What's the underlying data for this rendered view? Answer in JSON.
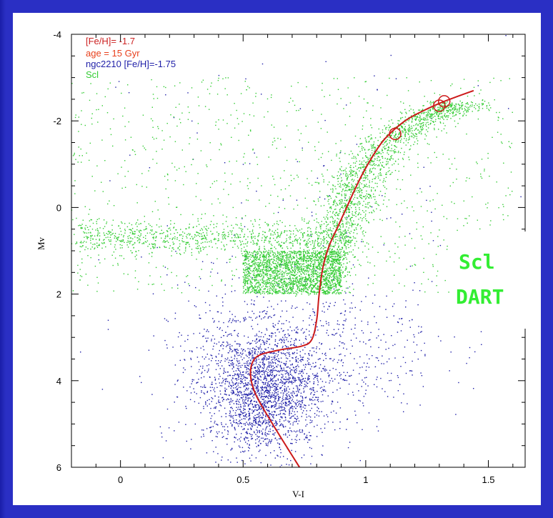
{
  "chart_data": {
    "type": "scatter",
    "xlabel": "V-I",
    "ylabel": "Mv",
    "xlim": [
      -0.2,
      1.65
    ],
    "ylim": [
      6,
      -4
    ],
    "y_inverted": true,
    "x_ticks": [
      0,
      0.5,
      1,
      1.5
    ],
    "x_tick_labels": [
      "0",
      "0.5",
      "1",
      "1.5"
    ],
    "y_ticks": [
      -4,
      -2,
      0,
      2,
      4,
      6
    ],
    "y_tick_labels": [
      "-4",
      "-2",
      "0",
      "2",
      "4",
      "6"
    ],
    "legend": [
      {
        "label": "[Fe/H]= -1.7",
        "color": "#cc2222"
      },
      {
        "label": "age = 15 Gyr",
        "color": "#e8401c"
      },
      {
        "label": "ngc2210 [Fe/H]=-1.75",
        "color": "#1f1fa8"
      },
      {
        "label": "Scl",
        "color": "#33cc33"
      }
    ],
    "legend_position": "top-left",
    "series": [
      {
        "name": "ngc2210 [Fe/H]=-1.75",
        "kind": "points",
        "color": "#1f1fa8",
        "clusters": [
          {
            "center": [
              0.58,
              4.2
            ],
            "spread": [
              0.12,
              0.75
            ],
            "count": 2200
          },
          {
            "center": [
              0.75,
              3.4
            ],
            "spread": [
              0.28,
              0.9
            ],
            "count": 700
          },
          {
            "center": [
              0.7,
              0.5
            ],
            "spread": [
              0.5,
              2.2
            ],
            "count": 150
          }
        ]
      },
      {
        "name": "Scl",
        "kind": "points",
        "color": "#33cc33",
        "clusters": [
          {
            "type": "horizontal_branch",
            "x": [
              -0.18,
              0.95
            ],
            "y_center": 0.7,
            "y_spread": 0.18,
            "count": 900
          },
          {
            "type": "red_giant_branch",
            "ridge": [
              [
                0.8,
                2.0
              ],
              [
                0.87,
                1.0
              ],
              [
                0.93,
                0.0
              ],
              [
                0.98,
                -0.8
              ],
              [
                1.08,
                -1.5
              ],
              [
                1.25,
                -2.1
              ],
              [
                1.4,
                -2.4
              ]
            ],
            "spread": 0.06,
            "count": 1800
          },
          {
            "type": "lower_rgb_band",
            "x": [
              0.5,
              0.9
            ],
            "y": [
              1.0,
              2.0
            ],
            "count": 2000
          },
          {
            "type": "field",
            "x": [
              -0.2,
              1.6
            ],
            "y": [
              -3.0,
              2.0
            ],
            "count": 900
          }
        ]
      },
      {
        "name": "[Fe/H]= -1.7",
        "kind": "isochrone",
        "color": "#cc1a1a",
        "x": [
          0.73,
          0.62,
          0.55,
          0.53,
          0.555,
          0.64,
          0.74,
          0.78,
          0.8,
          0.81,
          0.825,
          0.85,
          0.89,
          0.93,
          0.98,
          1.03,
          1.08,
          1.16,
          1.24,
          1.32,
          1.44
        ],
        "y": [
          6.0,
          5.0,
          4.3,
          3.8,
          3.45,
          3.3,
          3.2,
          3.05,
          2.6,
          2.0,
          1.4,
          0.9,
          0.4,
          -0.1,
          -0.7,
          -1.2,
          -1.6,
          -2.0,
          -2.25,
          -2.45,
          -2.7
        ]
      }
    ],
    "annotations": [
      {
        "kind": "circle",
        "x": 1.12,
        "y": -1.7,
        "color": "#cc1a1a"
      },
      {
        "kind": "circle",
        "x": 1.3,
        "y": -2.35,
        "color": "#cc1a1a"
      },
      {
        "kind": "circle",
        "x": 1.32,
        "y": -2.45,
        "color": "#cc1a1a"
      }
    ]
  },
  "callout": {
    "line1": "Scl",
    "line2": "DART",
    "color": "#33ee33"
  }
}
